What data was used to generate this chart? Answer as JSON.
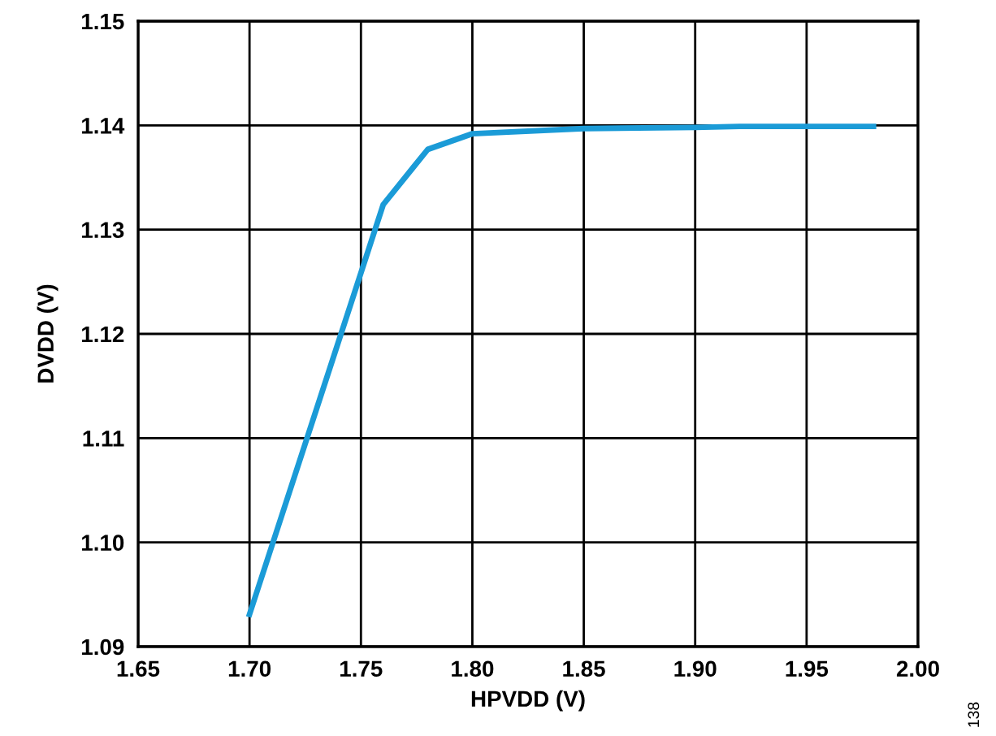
{
  "chart_data": {
    "type": "line",
    "xlabel": "HPVDD (V)",
    "ylabel": "DVDD (V)",
    "x": [
      1.7,
      1.76,
      1.78,
      1.8,
      1.85,
      1.9,
      1.92,
      1.98
    ],
    "series": [
      {
        "color": "#1b9bd7",
        "values": [
          1.0931,
          1.1324,
          1.1377,
          1.1392,
          1.1397,
          1.1398,
          1.1399,
          1.1399
        ]
      }
    ],
    "xlim": [
      1.65,
      2.0
    ],
    "xticks": [
      {
        "value": 1.65,
        "label": "1.65"
      },
      {
        "value": 1.7,
        "label": "1.70"
      },
      {
        "value": 1.75,
        "label": "1.75"
      },
      {
        "value": 1.8,
        "label": "1.80"
      },
      {
        "value": 1.85,
        "label": "1.85"
      },
      {
        "value": 1.9,
        "label": "1.90"
      },
      {
        "value": 1.95,
        "label": "1.95"
      },
      {
        "value": 2.0,
        "label": "2.00"
      }
    ],
    "ylim": [
      1.09,
      1.15
    ],
    "yticks": [
      {
        "value": 1.09,
        "label": "1.09"
      },
      {
        "value": 1.1,
        "label": "1.10"
      },
      {
        "value": 1.11,
        "label": "1.11"
      },
      {
        "value": 1.12,
        "label": "1.12"
      },
      {
        "value": 1.13,
        "label": "1.13"
      },
      {
        "value": 1.14,
        "label": "1.14"
      },
      {
        "value": 1.15,
        "label": "1.15"
      }
    ],
    "grid": true,
    "annotations": [
      "138"
    ]
  }
}
